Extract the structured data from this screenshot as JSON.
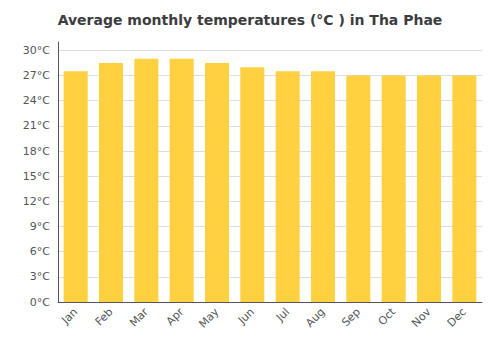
{
  "chart_data": {
    "type": "bar",
    "title": "Average monthly temperatures (°C ) in Tha Phae",
    "categories": [
      "Jan",
      "Feb",
      "Mar",
      "Apr",
      "May",
      "Jun",
      "Jul",
      "Aug",
      "Sep",
      "Oct",
      "Nov",
      "Dec"
    ],
    "values": [
      27.5,
      28.5,
      29.0,
      29.0,
      28.5,
      28.0,
      27.5,
      27.5,
      27.0,
      27.0,
      27.0,
      27.0
    ],
    "color": "#FFD040",
    "ylim": [
      0,
      31
    ],
    "yticks": [
      {
        "value": 0,
        "label": "0°C"
      },
      {
        "value": 3,
        "label": "3°C"
      },
      {
        "value": 6,
        "label": "6°C"
      },
      {
        "value": 9,
        "label": "9°C"
      },
      {
        "value": 12,
        "label": "12°C"
      },
      {
        "value": 15,
        "label": "15°C"
      },
      {
        "value": 18,
        "label": "18°C"
      },
      {
        "value": 21,
        "label": "21°C"
      },
      {
        "value": 24,
        "label": "24°C"
      },
      {
        "value": 27,
        "label": "27°C"
      },
      {
        "value": 30,
        "label": "30°C"
      }
    ],
    "grid": true
  }
}
